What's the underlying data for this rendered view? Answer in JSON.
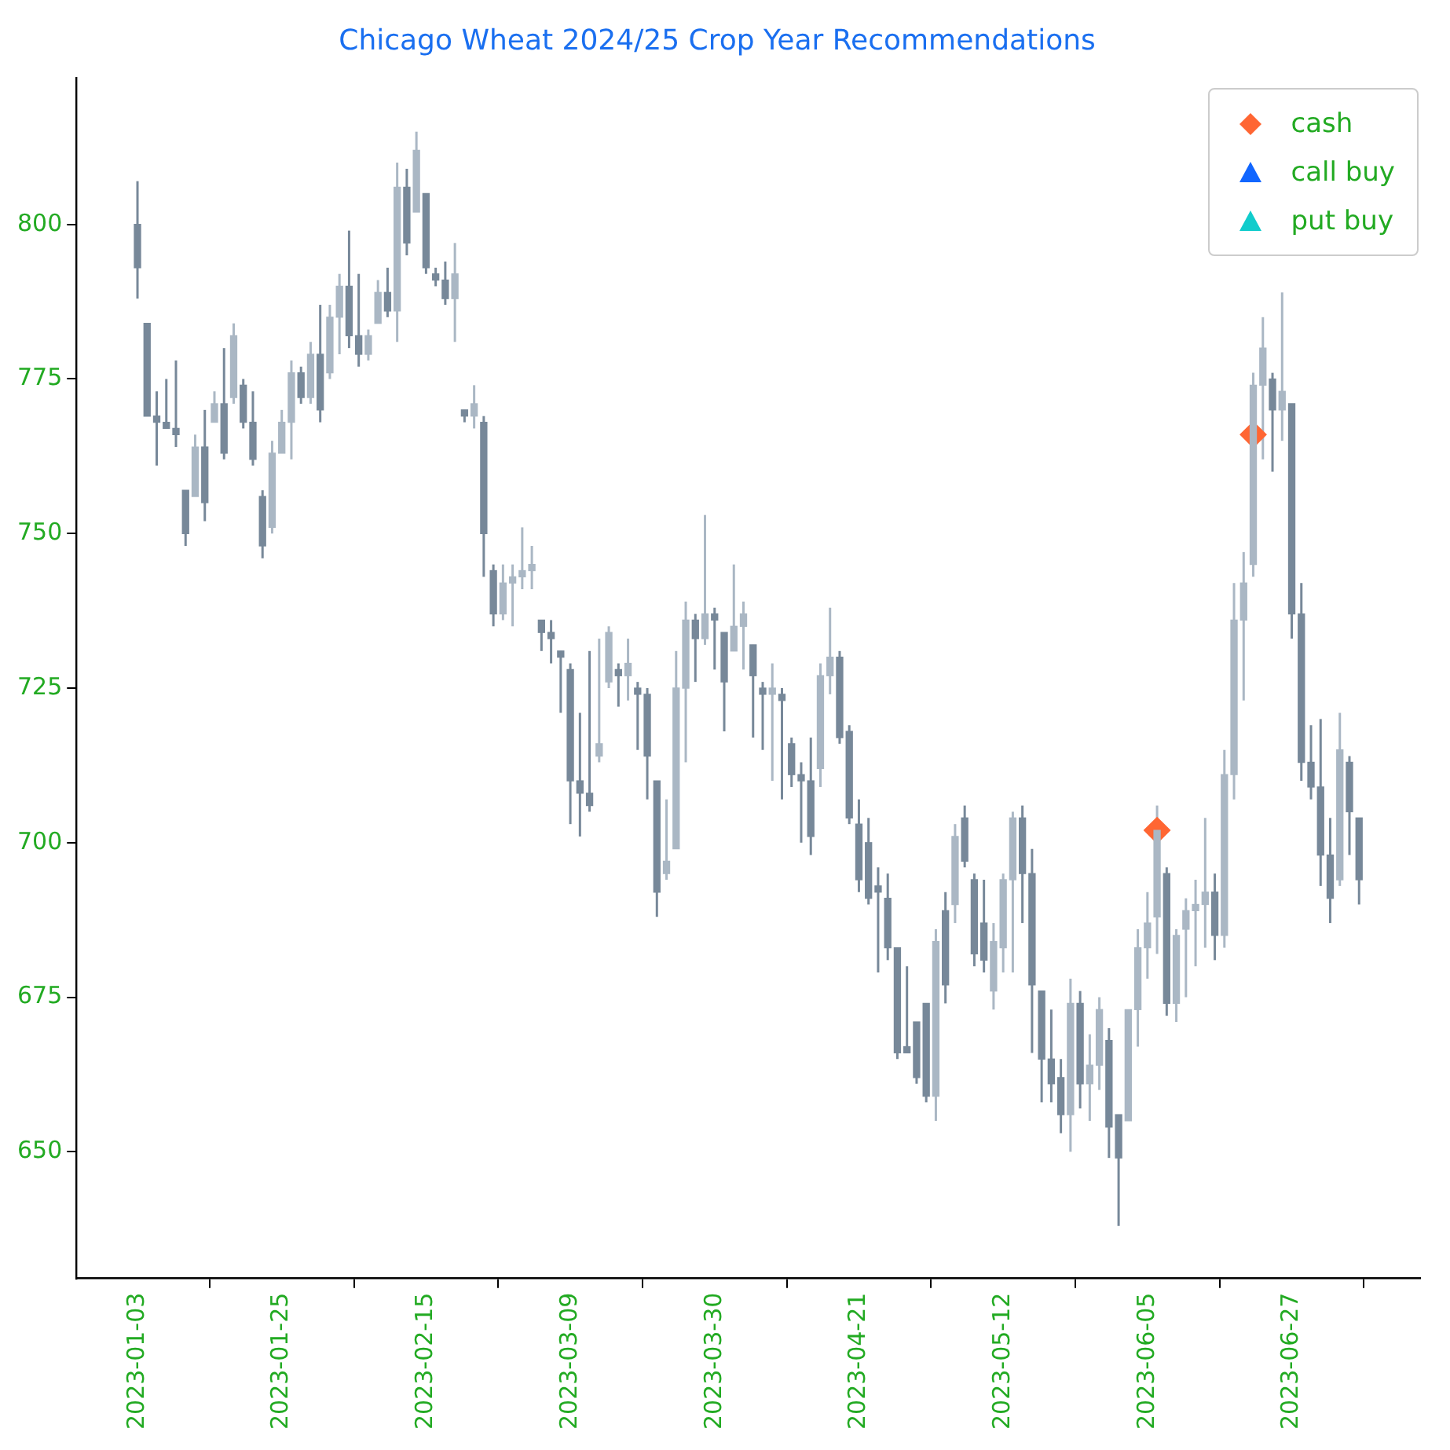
{
  "chart_data": {
    "type": "candlestick",
    "title": "Chicago Wheat 2024/25 Crop Year Recommendations",
    "colors": [
      "#778899",
      "#778899",
      "#778899",
      "#778899",
      "#778899",
      "#778899",
      "#aab7c4",
      "#778899",
      "#aab7c4",
      "#778899",
      "#aab7c4",
      "#778899",
      "#778899",
      "#778899",
      "#aab7c4",
      "#aab7c4",
      "#aab7c4",
      "#778899",
      "#aab7c4",
      "#778899",
      "#aab7c4",
      "#aab7c4",
      "#778899",
      "#778899",
      "#aab7c4",
      "#aab7c4",
      "#778899",
      "#aab7c4",
      "#778899",
      "#aab7c4",
      "#778899",
      "#778899",
      "#778899",
      "#aab7c4",
      "#778899",
      "#aab7c4",
      "#778899",
      "#778899",
      "#aab7c4",
      "#aab7c4",
      "#aab7c4",
      "#aab7c4",
      "#778899",
      "#778899",
      "#778899",
      "#778899",
      "#778899",
      "#778899",
      "#aab7c4",
      "#aab7c4",
      "#778899",
      "#aab7c4",
      "#778899",
      "#778899",
      "#778899",
      "#aab7c4",
      "#aab7c4",
      "#aab7c4",
      "#778899",
      "#aab7c4",
      "#778899",
      "#778899",
      "#aab7c4",
      "#aab7c4",
      "#778899",
      "#778899",
      "#aab7c4",
      "#778899",
      "#778899",
      "#778899",
      "#778899",
      "#aab7c4",
      "#aab7c4",
      "#778899",
      "#778899",
      "#778899",
      "#778899",
      "#778899",
      "#778899",
      "#778899",
      "#778899",
      "#778899",
      "#778899",
      "#aab7c4",
      "#778899",
      "#aab7c4",
      "#778899",
      "#778899",
      "#778899",
      "#aab7c4",
      "#aab7c4",
      "#aab7c4",
      "#778899",
      "#778899",
      "#778899",
      "#778899",
      "#778899",
      "#aab7c4",
      "#778899",
      "#aab7c4",
      "#aab7c4",
      "#778899",
      "#778899",
      "#aab7c4",
      "#aab7c4",
      "#aab7c4",
      "#aab7c4",
      "#778899",
      "#aab7c4",
      "#aab7c4",
      "#aab7c4",
      "#aab7c4",
      "#778899",
      "#aab7c4",
      "#aab7c4",
      "#aab7c4",
      "#aab7c4",
      "#aab7c4",
      "#778899",
      "#aab7c4",
      "#778899",
      "#778899",
      "#778899",
      "#778899",
      "#778899",
      "#aab7c4",
      "#778899",
      "#778899"
    ],
    "categories": [
      "2023-01-03",
      null,
      null,
      null,
      null,
      null,
      null,
      null,
      null,
      null,
      null,
      null,
      null,
      null,
      null,
      "2023-01-25",
      null,
      null,
      null,
      null,
      null,
      null,
      null,
      null,
      null,
      null,
      null,
      null,
      null,
      null,
      "2023-02-15",
      null,
      null,
      null,
      null,
      null,
      null,
      null,
      null,
      null,
      null,
      null,
      null,
      null,
      null,
      "2023-03-09",
      null,
      null,
      null,
      null,
      null,
      null,
      null,
      null,
      null,
      null,
      null,
      null,
      null,
      null,
      "2023-03-30",
      null,
      null,
      null,
      null,
      null,
      null,
      null,
      null,
      null,
      null,
      null,
      null,
      null,
      null,
      "2023-04-21",
      null,
      null,
      null,
      null,
      null,
      null,
      null,
      null,
      null,
      null,
      null,
      null,
      null,
      null,
      "2023-05-12",
      null,
      null,
      null,
      null,
      null,
      null,
      null,
      null,
      null,
      null,
      null,
      null,
      null,
      null,
      "2023-06-05",
      null,
      null,
      null,
      null,
      null,
      null,
      null,
      null,
      null,
      null,
      null,
      null,
      null,
      null,
      "2023-06-27",
      null,
      null,
      null,
      null,
      null,
      null,
      null
    ],
    "ohlc": [
      [
        800,
        807,
        788,
        793
      ],
      [
        784,
        784,
        769,
        769
      ],
      [
        769,
        773,
        761,
        768
      ],
      [
        768,
        775,
        767,
        767
      ],
      [
        767,
        778,
        764,
        766
      ],
      [
        757,
        757,
        748,
        750
      ],
      [
        756,
        766,
        756,
        764
      ],
      [
        764,
        770,
        752,
        755
      ],
      [
        768,
        773,
        768,
        771
      ],
      [
        771,
        780,
        762,
        763
      ],
      [
        772,
        784,
        771,
        782
      ],
      [
        774,
        775,
        767,
        768
      ],
      [
        768,
        773,
        761,
        762
      ],
      [
        756,
        757,
        746,
        748
      ],
      [
        751,
        765,
        750,
        763
      ],
      [
        763,
        770,
        763,
        768
      ],
      [
        768,
        778,
        762,
        776
      ],
      [
        776,
        777,
        771,
        772
      ],
      [
        772,
        781,
        771,
        779
      ],
      [
        779,
        787,
        768,
        770
      ],
      [
        776,
        787,
        775,
        785
      ],
      [
        785,
        792,
        779,
        790
      ],
      [
        790,
        799,
        780,
        782
      ],
      [
        782,
        792,
        777,
        779
      ],
      [
        779,
        783,
        778,
        782
      ],
      [
        784,
        791,
        784,
        789
      ],
      [
        789,
        793,
        785,
        786
      ],
      [
        786,
        810,
        781,
        806
      ],
      [
        806,
        809,
        795,
        797
      ],
      [
        802,
        815,
        802,
        812
      ],
      [
        805,
        805,
        792,
        793
      ],
      [
        792,
        793,
        790,
        791
      ],
      [
        791,
        794,
        787,
        788
      ],
      [
        788,
        797,
        781,
        792
      ],
      [
        770,
        770,
        768,
        769
      ],
      [
        769,
        774,
        767,
        771
      ],
      [
        768,
        769,
        743,
        750
      ],
      [
        744,
        745,
        735,
        737
      ],
      [
        737,
        745,
        736,
        742
      ],
      [
        742,
        745,
        735,
        743
      ],
      [
        743,
        751,
        741,
        744
      ],
      [
        744,
        748,
        741,
        745
      ],
      [
        736,
        736,
        731,
        734
      ],
      [
        734,
        736,
        729,
        733
      ],
      [
        731,
        731,
        721,
        730
      ],
      [
        728,
        729,
        703,
        710
      ],
      [
        710,
        721,
        701,
        708
      ],
      [
        708,
        731,
        705,
        706
      ],
      [
        714,
        733,
        713,
        716
      ],
      [
        726,
        735,
        725,
        734
      ],
      [
        728,
        729,
        722,
        727
      ],
      [
        727,
        733,
        723,
        729
      ],
      [
        725,
        726,
        715,
        724
      ],
      [
        724,
        725,
        707,
        714
      ],
      [
        710,
        710,
        688,
        692
      ],
      [
        695,
        707,
        694,
        697
      ],
      [
        699,
        731,
        699,
        725
      ],
      [
        725,
        739,
        713,
        736
      ],
      [
        736,
        737,
        726,
        733
      ],
      [
        733,
        753,
        732,
        737
      ],
      [
        737,
        738,
        728,
        736
      ],
      [
        734,
        734,
        718,
        726
      ],
      [
        731,
        745,
        731,
        735
      ],
      [
        735,
        739,
        728,
        737
      ],
      [
        732,
        732,
        717,
        727
      ],
      [
        725,
        726,
        715,
        724
      ],
      [
        724,
        729,
        710,
        725
      ],
      [
        724,
        725,
        707,
        723
      ],
      [
        716,
        717,
        709,
        711
      ],
      [
        711,
        713,
        700,
        710
      ],
      [
        710,
        717,
        698,
        701
      ],
      [
        712,
        729,
        709,
        727
      ],
      [
        727,
        738,
        724,
        730
      ],
      [
        730,
        731,
        716,
        717
      ],
      [
        718,
        719,
        703,
        704
      ],
      [
        703,
        707,
        692,
        694
      ],
      [
        700,
        704,
        690,
        691
      ],
      [
        693,
        696,
        679,
        692
      ],
      [
        691,
        695,
        681,
        683
      ],
      [
        683,
        683,
        665,
        666
      ],
      [
        667,
        680,
        666,
        666
      ],
      [
        671,
        671,
        661,
        662
      ],
      [
        674,
        674,
        658,
        659
      ],
      [
        659,
        686,
        655,
        684
      ],
      [
        689,
        692,
        674,
        677
      ],
      [
        690,
        703,
        687,
        701
      ],
      [
        704,
        706,
        696,
        697
      ],
      [
        694,
        695,
        680,
        682
      ],
      [
        687,
        694,
        679,
        681
      ],
      [
        676,
        687,
        673,
        684
      ],
      [
        683,
        695,
        679,
        694
      ],
      [
        694,
        705,
        679,
        704
      ],
      [
        704,
        706,
        687,
        695
      ],
      [
        695,
        699,
        666,
        677
      ],
      [
        676,
        676,
        658,
        665
      ],
      [
        665,
        673,
        658,
        661
      ],
      [
        662,
        665,
        653,
        656
      ],
      [
        656,
        678,
        650,
        674
      ],
      [
        674,
        676,
        657,
        661
      ],
      [
        661,
        669,
        655,
        664
      ],
      [
        664,
        675,
        660,
        673
      ],
      [
        668,
        670,
        649,
        654
      ],
      [
        656,
        656,
        638,
        649
      ],
      [
        655,
        673,
        655,
        673
      ],
      [
        673,
        686,
        667,
        683
      ],
      [
        683,
        692,
        678,
        687
      ],
      [
        688,
        706,
        682,
        702
      ],
      [
        695,
        696,
        672,
        674
      ],
      [
        674,
        686,
        671,
        685
      ],
      [
        686,
        691,
        675,
        689
      ],
      [
        689,
        694,
        680,
        690
      ],
      [
        690,
        704,
        683,
        692
      ],
      [
        692,
        695,
        681,
        685
      ],
      [
        685,
        715,
        683,
        711
      ],
      [
        711,
        742,
        707,
        736
      ],
      [
        736,
        747,
        723,
        742
      ],
      [
        745,
        776,
        743,
        774
      ],
      [
        774,
        785,
        762,
        780
      ],
      [
        775,
        776,
        760,
        770
      ],
      [
        770,
        789,
        765,
        773
      ],
      [
        771,
        771,
        733,
        737
      ],
      [
        737,
        742,
        710,
        713
      ],
      [
        713,
        719,
        707,
        709
      ],
      [
        709,
        720,
        693,
        698
      ],
      [
        698,
        704,
        687,
        691
      ],
      [
        694,
        721,
        693,
        715
      ],
      [
        713,
        714,
        698,
        705
      ],
      [
        704,
        704,
        690,
        694
      ]
    ],
    "series": [
      {
        "name": "cash",
        "type": "scatter",
        "marker": "diamond",
        "color": "#ff6633",
        "values": [
          null,
          null,
          null,
          null,
          null,
          null,
          null,
          null,
          null,
          null,
          null,
          null,
          null,
          null,
          null,
          null,
          null,
          null,
          null,
          null,
          null,
          null,
          null,
          null,
          null,
          null,
          null,
          null,
          null,
          null,
          null,
          null,
          null,
          null,
          null,
          null,
          null,
          null,
          null,
          null,
          null,
          null,
          null,
          null,
          null,
          null,
          null,
          null,
          null,
          null,
          null,
          null,
          null,
          null,
          null,
          null,
          null,
          null,
          null,
          null,
          null,
          null,
          null,
          null,
          null,
          null,
          null,
          null,
          null,
          null,
          null,
          null,
          null,
          null,
          null,
          null,
          null,
          null,
          null,
          null,
          null,
          null,
          null,
          null,
          null,
          null,
          null,
          null,
          null,
          null,
          null,
          null,
          null,
          null,
          null,
          null,
          null,
          null,
          null,
          null,
          null,
          null,
          null,
          null,
          null,
          null,
          702,
          null,
          null,
          null,
          null,
          null,
          null,
          null,
          null,
          null,
          766,
          null,
          null,
          null,
          null,
          null,
          null,
          null,
          null,
          null,
          null,
          null
        ]
      },
      {
        "name": "call buy",
        "type": "scatter",
        "marker": "triangle",
        "color": "#1166ff",
        "values": [
          null,
          null,
          null,
          null,
          null,
          null,
          null,
          null,
          null,
          null,
          null,
          null,
          null,
          null,
          null,
          null,
          null,
          null,
          null,
          null,
          null,
          null,
          null,
          null,
          null,
          null,
          null,
          null,
          null,
          null,
          null,
          null,
          null,
          null,
          null,
          null,
          null,
          null,
          null,
          null,
          null,
          null,
          null,
          null,
          null,
          null,
          null,
          null,
          null,
          null,
          null,
          null,
          null,
          null,
          null,
          null,
          null,
          null,
          null,
          null,
          null,
          null,
          null,
          null,
          null,
          null,
          null,
          null,
          null,
          null,
          null,
          null,
          null,
          null,
          null,
          null,
          null,
          null,
          null,
          null,
          null,
          null,
          null,
          null,
          null,
          null,
          null,
          null,
          null,
          null,
          null,
          null,
          null,
          null,
          null,
          null,
          null,
          null,
          null,
          null,
          null,
          null,
          null,
          null,
          null,
          null,
          null,
          null,
          null,
          null,
          null,
          null,
          null,
          null,
          null,
          null,
          null,
          null,
          null,
          null,
          null,
          null,
          null,
          null,
          null,
          null,
          null,
          null
        ]
      },
      {
        "name": "put buy",
        "type": "scatter",
        "marker": "triangle",
        "color": "#11cccc",
        "values": [
          null,
          null,
          null,
          null,
          null,
          null,
          null,
          null,
          null,
          null,
          null,
          null,
          null,
          null,
          null,
          null,
          null,
          null,
          null,
          null,
          null,
          null,
          null,
          null,
          null,
          null,
          null,
          null,
          null,
          null,
          null,
          null,
          null,
          null,
          null,
          null,
          null,
          null,
          null,
          null,
          null,
          null,
          null,
          null,
          null,
          null,
          null,
          null,
          null,
          null,
          null,
          null,
          null,
          null,
          null,
          null,
          null,
          null,
          null,
          null,
          null,
          null,
          null,
          null,
          null,
          null,
          null,
          null,
          null,
          null,
          null,
          null,
          null,
          null,
          null,
          null,
          null,
          null,
          null,
          null,
          null,
          null,
          null,
          null,
          null,
          null,
          null,
          null,
          null,
          null,
          null,
          null,
          null,
          null,
          null,
          null,
          null,
          null,
          null,
          null,
          null,
          null,
          null,
          null,
          null,
          null,
          null,
          null,
          null,
          null,
          null,
          null,
          null,
          null,
          null,
          null,
          null,
          null,
          null,
          null,
          null,
          null,
          null,
          null,
          null,
          null,
          null,
          null
        ]
      }
    ],
    "ylim": [
      629.5,
      823.7
    ],
    "yticks": [
      650,
      675,
      700,
      725,
      750,
      775,
      800
    ],
    "legend": "top right"
  }
}
